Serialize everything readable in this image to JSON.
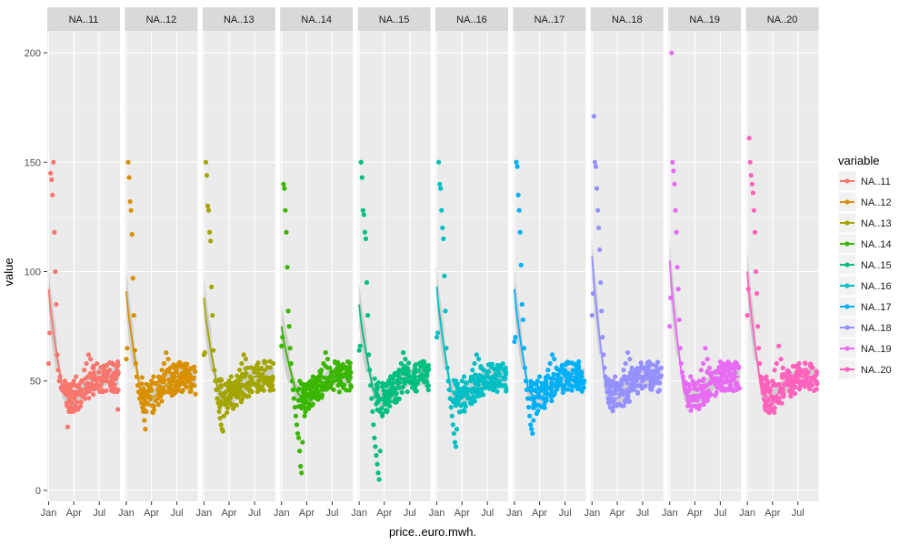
{
  "chart_data": {
    "type": "scatter",
    "title": "",
    "xlabel": "price..euro.mwh.",
    "ylabel": "value",
    "ylim": [
      -5,
      210
    ],
    "y_ticks": [
      0,
      50,
      100,
      150,
      200
    ],
    "x_ticks": [
      {
        "label": "Jan",
        "day": 0
      },
      {
        "label": "Apr",
        "day": 90
      },
      {
        "label": "Jul",
        "day": 181
      }
    ],
    "x_range_days": [
      -5,
      255
    ],
    "grid": true,
    "smoother": true,
    "legend": {
      "title": "variable",
      "position": "right"
    },
    "series": [
      {
        "name": "NA..11",
        "color": "#F8766D",
        "peak": 150,
        "smooth_start": 92,
        "dip": 29,
        "late": 62,
        "values": [
          58,
          72,
          145,
          142,
          135,
          150,
          118,
          100,
          85,
          62,
          55,
          50,
          52,
          47,
          46,
          48,
          45,
          50,
          44,
          40,
          29,
          38,
          44,
          48,
          50,
          52,
          48,
          46,
          50,
          55,
          58,
          62,
          60,
          56,
          52,
          50,
          54,
          48,
          50,
          52,
          53,
          55,
          50,
          48,
          51,
          37
        ]
      },
      {
        "name": "NA..12",
        "color": "#D89000",
        "peak": 150,
        "smooth_start": 91,
        "dip": 28,
        "late": 63,
        "values": [
          60,
          65,
          150,
          143,
          132,
          128,
          117,
          97,
          80,
          64,
          58,
          52,
          48,
          45,
          42,
          44,
          40,
          38,
          36,
          32,
          28,
          36,
          44,
          48,
          50,
          52,
          49,
          46,
          50,
          55,
          58,
          63,
          60,
          56,
          52,
          50,
          54,
          48,
          50,
          52,
          53,
          55,
          50,
          48,
          51,
          44
        ]
      },
      {
        "name": "NA..13",
        "color": "#A3A500",
        "peak": 150,
        "smooth_start": 88,
        "dip": 27,
        "late": 62,
        "values": [
          62,
          63,
          150,
          144,
          130,
          128,
          118,
          114,
          93,
          80,
          64,
          55,
          50,
          46,
          42,
          40,
          36,
          33,
          30,
          28,
          27,
          34,
          42,
          48,
          50,
          52,
          49,
          46,
          50,
          55,
          58,
          62,
          60,
          56,
          52,
          50,
          54,
          48,
          50,
          52,
          53,
          55,
          50,
          48,
          51,
          46
        ]
      },
      {
        "name": "NA..14",
        "color": "#39B600",
        "peak": 140,
        "smooth_start": 75,
        "dip": 8,
        "late": 63,
        "values": [
          66,
          70,
          140,
          138,
          128,
          118,
          102,
          82,
          75,
          65,
          58,
          50,
          46,
          42,
          38,
          34,
          30,
          26,
          24,
          18,
          11,
          8,
          22,
          34,
          44,
          48,
          50,
          52,
          49,
          46,
          50,
          55,
          58,
          63,
          60,
          56,
          52,
          50,
          54,
          48,
          50,
          52,
          53,
          55,
          50,
          48
        ]
      },
      {
        "name": "NA..15",
        "color": "#00BF7D",
        "peak": 150,
        "smooth_start": 85,
        "dip": 5,
        "late": 63,
        "values": [
          64,
          66,
          150,
          143,
          128,
          126,
          118,
          115,
          95,
          80,
          62,
          55,
          48,
          42,
          36,
          30,
          24,
          20,
          16,
          12,
          8,
          5,
          18,
          34,
          44,
          48,
          50,
          52,
          49,
          46,
          50,
          55,
          58,
          63,
          60,
          56,
          52,
          50,
          54,
          48,
          50,
          52,
          53,
          55,
          50,
          48
        ]
      },
      {
        "name": "NA..16",
        "color": "#00BFC4",
        "peak": 150,
        "smooth_start": 93,
        "dip": 20,
        "late": 62,
        "values": [
          70,
          72,
          150,
          140,
          138,
          128,
          120,
          115,
          98,
          82,
          65,
          56,
          50,
          46,
          42,
          38,
          34,
          30,
          26,
          22,
          20,
          28,
          40,
          46,
          50,
          52,
          49,
          46,
          50,
          55,
          58,
          62,
          60,
          56,
          52,
          50,
          54,
          48,
          50,
          52,
          53,
          55,
          50,
          48,
          51,
          54
        ]
      },
      {
        "name": "NA..17",
        "color": "#00B0F6",
        "peak": 150,
        "smooth_start": 92,
        "dip": 26,
        "late": 62,
        "values": [
          68,
          70,
          150,
          148,
          135,
          128,
          118,
          103,
          85,
          78,
          65,
          56,
          50,
          46,
          42,
          38,
          34,
          30,
          28,
          26,
          32,
          40,
          46,
          50,
          52,
          49,
          46,
          50,
          55,
          58,
          62,
          60,
          56,
          52,
          50,
          54,
          48,
          50,
          52,
          53,
          55,
          50,
          48,
          51,
          54,
          49
        ]
      },
      {
        "name": "NA..18",
        "color": "#9590FF",
        "peak": 171,
        "smooth_start": 107,
        "dip": 38,
        "late": 63,
        "values": [
          80,
          90,
          171,
          150,
          148,
          138,
          128,
          120,
          110,
          95,
          82,
          70,
          62,
          56,
          52,
          48,
          45,
          42,
          40,
          38,
          44,
          48,
          50,
          52,
          49,
          46,
          50,
          55,
          58,
          63,
          60,
          56,
          52,
          50,
          54,
          48,
          50,
          52,
          53,
          55,
          50,
          48,
          51,
          54,
          49,
          56
        ]
      },
      {
        "name": "NA..19",
        "color": "#E76BF3",
        "peak": 200,
        "smooth_start": 105,
        "dip": 40,
        "late": 65,
        "values": [
          75,
          88,
          200,
          150,
          146,
          140,
          128,
          118,
          102,
          92,
          78,
          65,
          58,
          54,
          52,
          50,
          48,
          46,
          44,
          42,
          40,
          48,
          52,
          50,
          49,
          46,
          50,
          55,
          58,
          65,
          60,
          56,
          52,
          50,
          54,
          48,
          50,
          52,
          53,
          55,
          50,
          48,
          51,
          54,
          49,
          56
        ]
      },
      {
        "name": "NA..20",
        "color": "#FF62BC",
        "peak": 161,
        "smooth_start": 100,
        "dip": 44,
        "late": 66,
        "values": [
          80,
          92,
          161,
          150,
          144,
          140,
          136,
          128,
          118,
          100,
          90,
          75,
          65,
          58,
          52,
          50,
          48,
          46,
          44,
          48,
          52,
          50,
          49,
          46,
          50,
          55,
          58,
          66,
          60,
          56,
          52,
          50,
          54,
          48,
          50,
          52,
          53,
          55,
          50,
          48,
          51,
          54,
          49,
          56,
          52,
          53
        ]
      }
    ]
  }
}
